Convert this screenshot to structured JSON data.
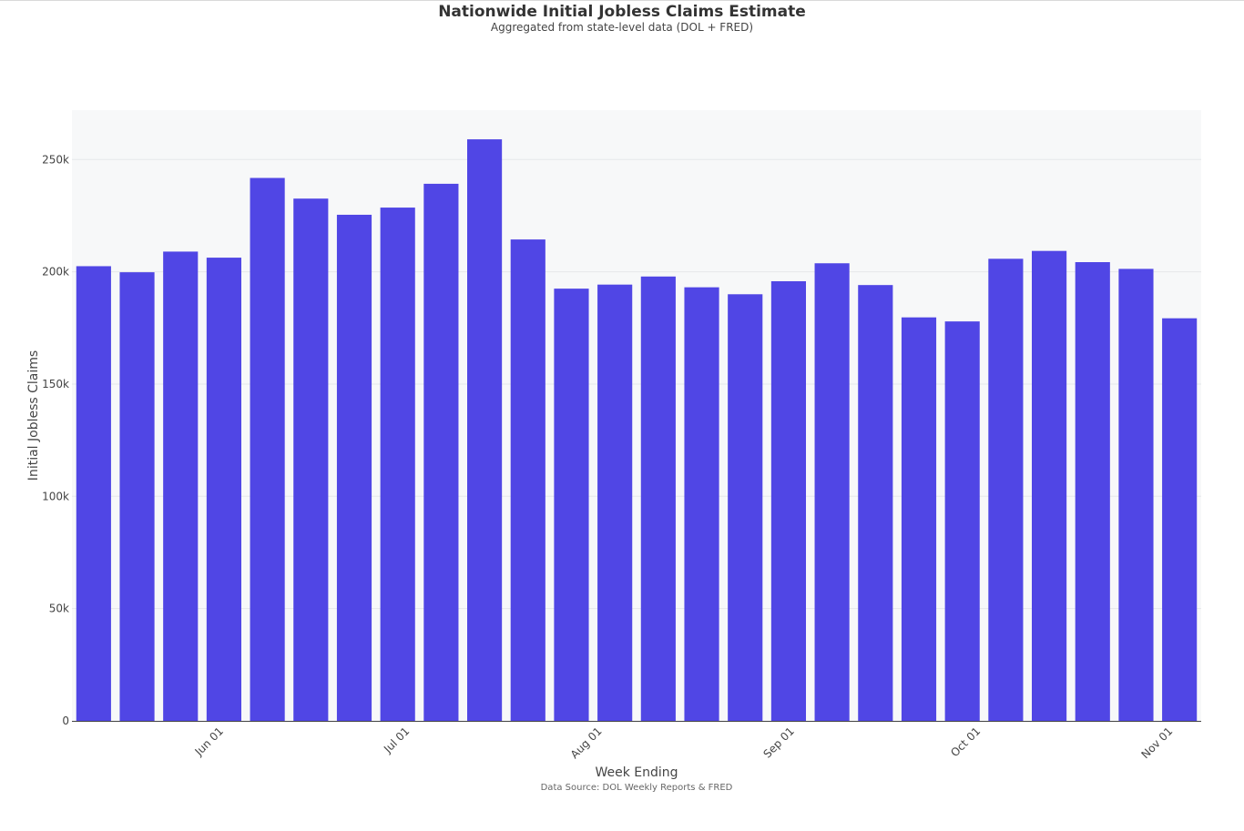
{
  "title": "Nationwide Initial Jobless Claims Estimate",
  "subtitle": "Aggregated from state-level data (DOL + FRED)",
  "footer": "Data Source: DOL Weekly Reports & FRED",
  "colors": {
    "bar": "#5046e5",
    "plot_bg": "#f7f8f9",
    "grid": "#e6e7ea"
  },
  "chart_data": {
    "type": "bar",
    "xlabel": "Week Ending",
    "ylabel": "Initial Jobless Claims",
    "ylim": [
      0,
      272000
    ],
    "grid": true,
    "x": [
      "2024-05-11",
      "2024-05-18",
      "2024-05-25",
      "2024-06-01",
      "2024-06-08",
      "2024-06-15",
      "2024-06-22",
      "2024-06-29",
      "2024-07-06",
      "2024-07-13",
      "2024-07-20",
      "2024-07-27",
      "2024-08-03",
      "2024-08-10",
      "2024-08-17",
      "2024-08-24",
      "2024-08-31",
      "2024-09-07",
      "2024-09-14",
      "2024-09-21",
      "2024-09-28",
      "2024-10-05",
      "2024-10-12",
      "2024-10-19",
      "2024-10-26",
      "2024-11-02"
    ],
    "values": [
      202500,
      199800,
      209000,
      206300,
      241800,
      232600,
      225400,
      228600,
      239200,
      259000,
      214400,
      192500,
      194300,
      197900,
      193100,
      190000,
      195800,
      203800,
      194100,
      179700,
      177900,
      205800,
      209300,
      204300,
      201300,
      179300
    ],
    "y_ticks": [
      {
        "value": 0,
        "label": "0"
      },
      {
        "value": 50000,
        "label": "50k"
      },
      {
        "value": 100000,
        "label": "100k"
      },
      {
        "value": 150000,
        "label": "150k"
      },
      {
        "value": 200000,
        "label": "200k"
      },
      {
        "value": 250000,
        "label": "250k"
      }
    ],
    "x_ticks": [
      {
        "date": "2024-06-01",
        "label": "Jun 01"
      },
      {
        "date": "2024-07-01",
        "label": "Jul 01"
      },
      {
        "date": "2024-08-01",
        "label": "Aug 01"
      },
      {
        "date": "2024-09-01",
        "label": "Sep 01"
      },
      {
        "date": "2024-10-01",
        "label": "Oct 01"
      },
      {
        "date": "2024-11-01",
        "label": "Nov 01"
      }
    ]
  }
}
